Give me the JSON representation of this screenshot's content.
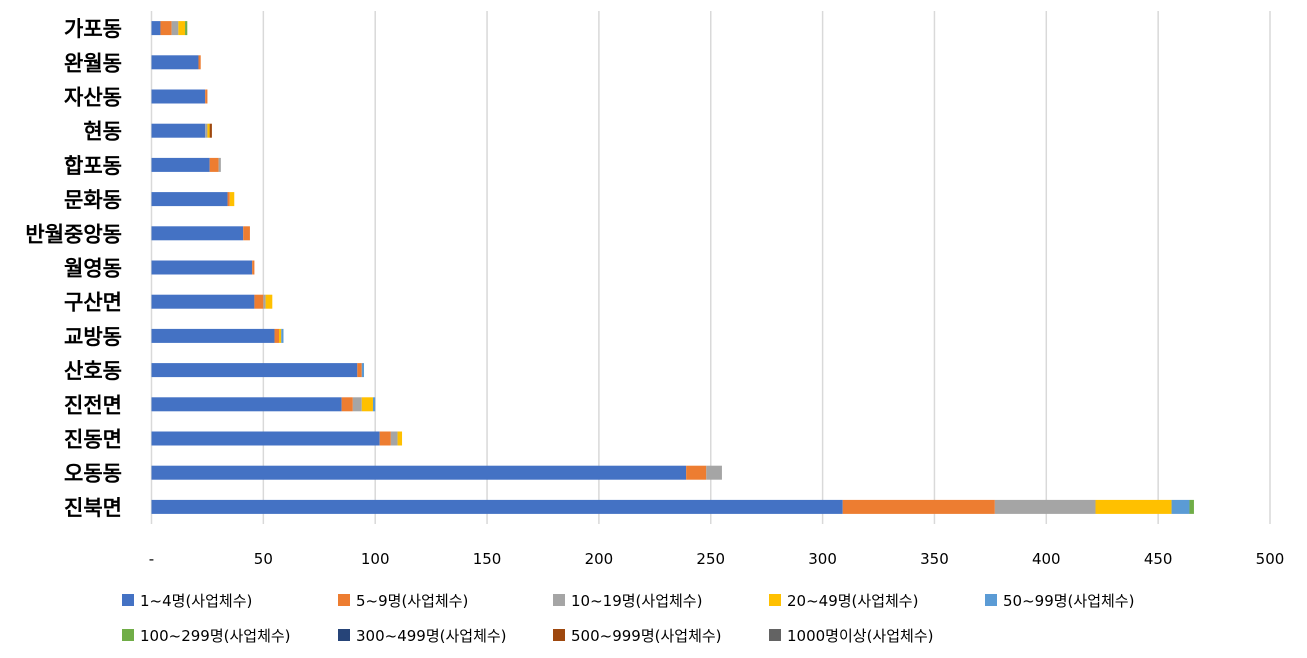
{
  "chart_data": {
    "type": "bar",
    "orientation": "horizontal",
    "stacked": true,
    "title": "",
    "xlabel": "",
    "ylabel": "",
    "xlim": [
      0,
      500
    ],
    "x_ticks": [
      "-",
      "50",
      "100",
      "150",
      "200",
      "250",
      "300",
      "350",
      "400",
      "450",
      "500"
    ],
    "x_tick_values": [
      0,
      50,
      100,
      150,
      200,
      250,
      300,
      350,
      400,
      450,
      500
    ],
    "grid": true,
    "legend_position": "bottom",
    "categories": [
      "가포동",
      "완월동",
      "자산동",
      "현동",
      "합포동",
      "문화동",
      "반월중앙동",
      "월영동",
      "구산면",
      "교방동",
      "산호동",
      "진전면",
      "진동면",
      "오동동",
      "진북면"
    ],
    "series": [
      {
        "name": "1~4명(사업체수)",
        "color": "#4472C4",
        "values": [
          4,
          21,
          24,
          24,
          26,
          34,
          41,
          45,
          46,
          55,
          92,
          85,
          102,
          239,
          309
        ]
      },
      {
        "name": "5~9명(사업체수)",
        "color": "#ED7D31",
        "values": [
          5,
          1,
          1,
          0,
          4,
          1,
          3,
          1,
          4,
          2,
          2,
          5,
          5,
          9,
          68
        ]
      },
      {
        "name": "10~19명(사업체수)",
        "color": "#A5A5A5",
        "values": [
          3,
          0,
          0,
          1,
          1,
          0,
          0,
          0,
          1,
          0,
          0,
          4,
          3,
          7,
          45
        ]
      },
      {
        "name": "20~49명(사업체수)",
        "color": "#FFC000",
        "values": [
          3,
          0,
          0,
          1,
          0,
          2,
          0,
          0,
          3,
          1,
          0,
          5,
          2,
          0,
          34
        ]
      },
      {
        "name": "50~99명(사업체수)",
        "color": "#5B9BD5",
        "values": [
          0,
          0,
          0,
          0,
          0,
          0,
          0,
          0,
          0,
          1,
          1,
          1,
          0,
          0,
          8
        ]
      },
      {
        "name": "100~299명(사업체수)",
        "color": "#70AD47",
        "values": [
          1,
          0,
          0,
          0,
          0,
          0,
          0,
          0,
          0,
          0,
          0,
          0,
          0,
          0,
          2
        ]
      },
      {
        "name": "300~499명(사업체수)",
        "color": "#264478",
        "values": [
          0,
          0,
          0,
          0,
          0,
          0,
          0,
          0,
          0,
          0,
          0,
          0,
          0,
          0,
          0
        ]
      },
      {
        "name": "500~999명(사업체수)",
        "color": "#9E480E",
        "values": [
          0,
          0,
          0,
          1,
          0,
          0,
          0,
          0,
          0,
          0,
          0,
          0,
          0,
          0,
          0
        ]
      },
      {
        "name": "1000명이상(사업체수)",
        "color": "#636363",
        "values": [
          0,
          0,
          0,
          0,
          0,
          0,
          0,
          0,
          0,
          0,
          0,
          0,
          0,
          0,
          0
        ]
      }
    ]
  }
}
